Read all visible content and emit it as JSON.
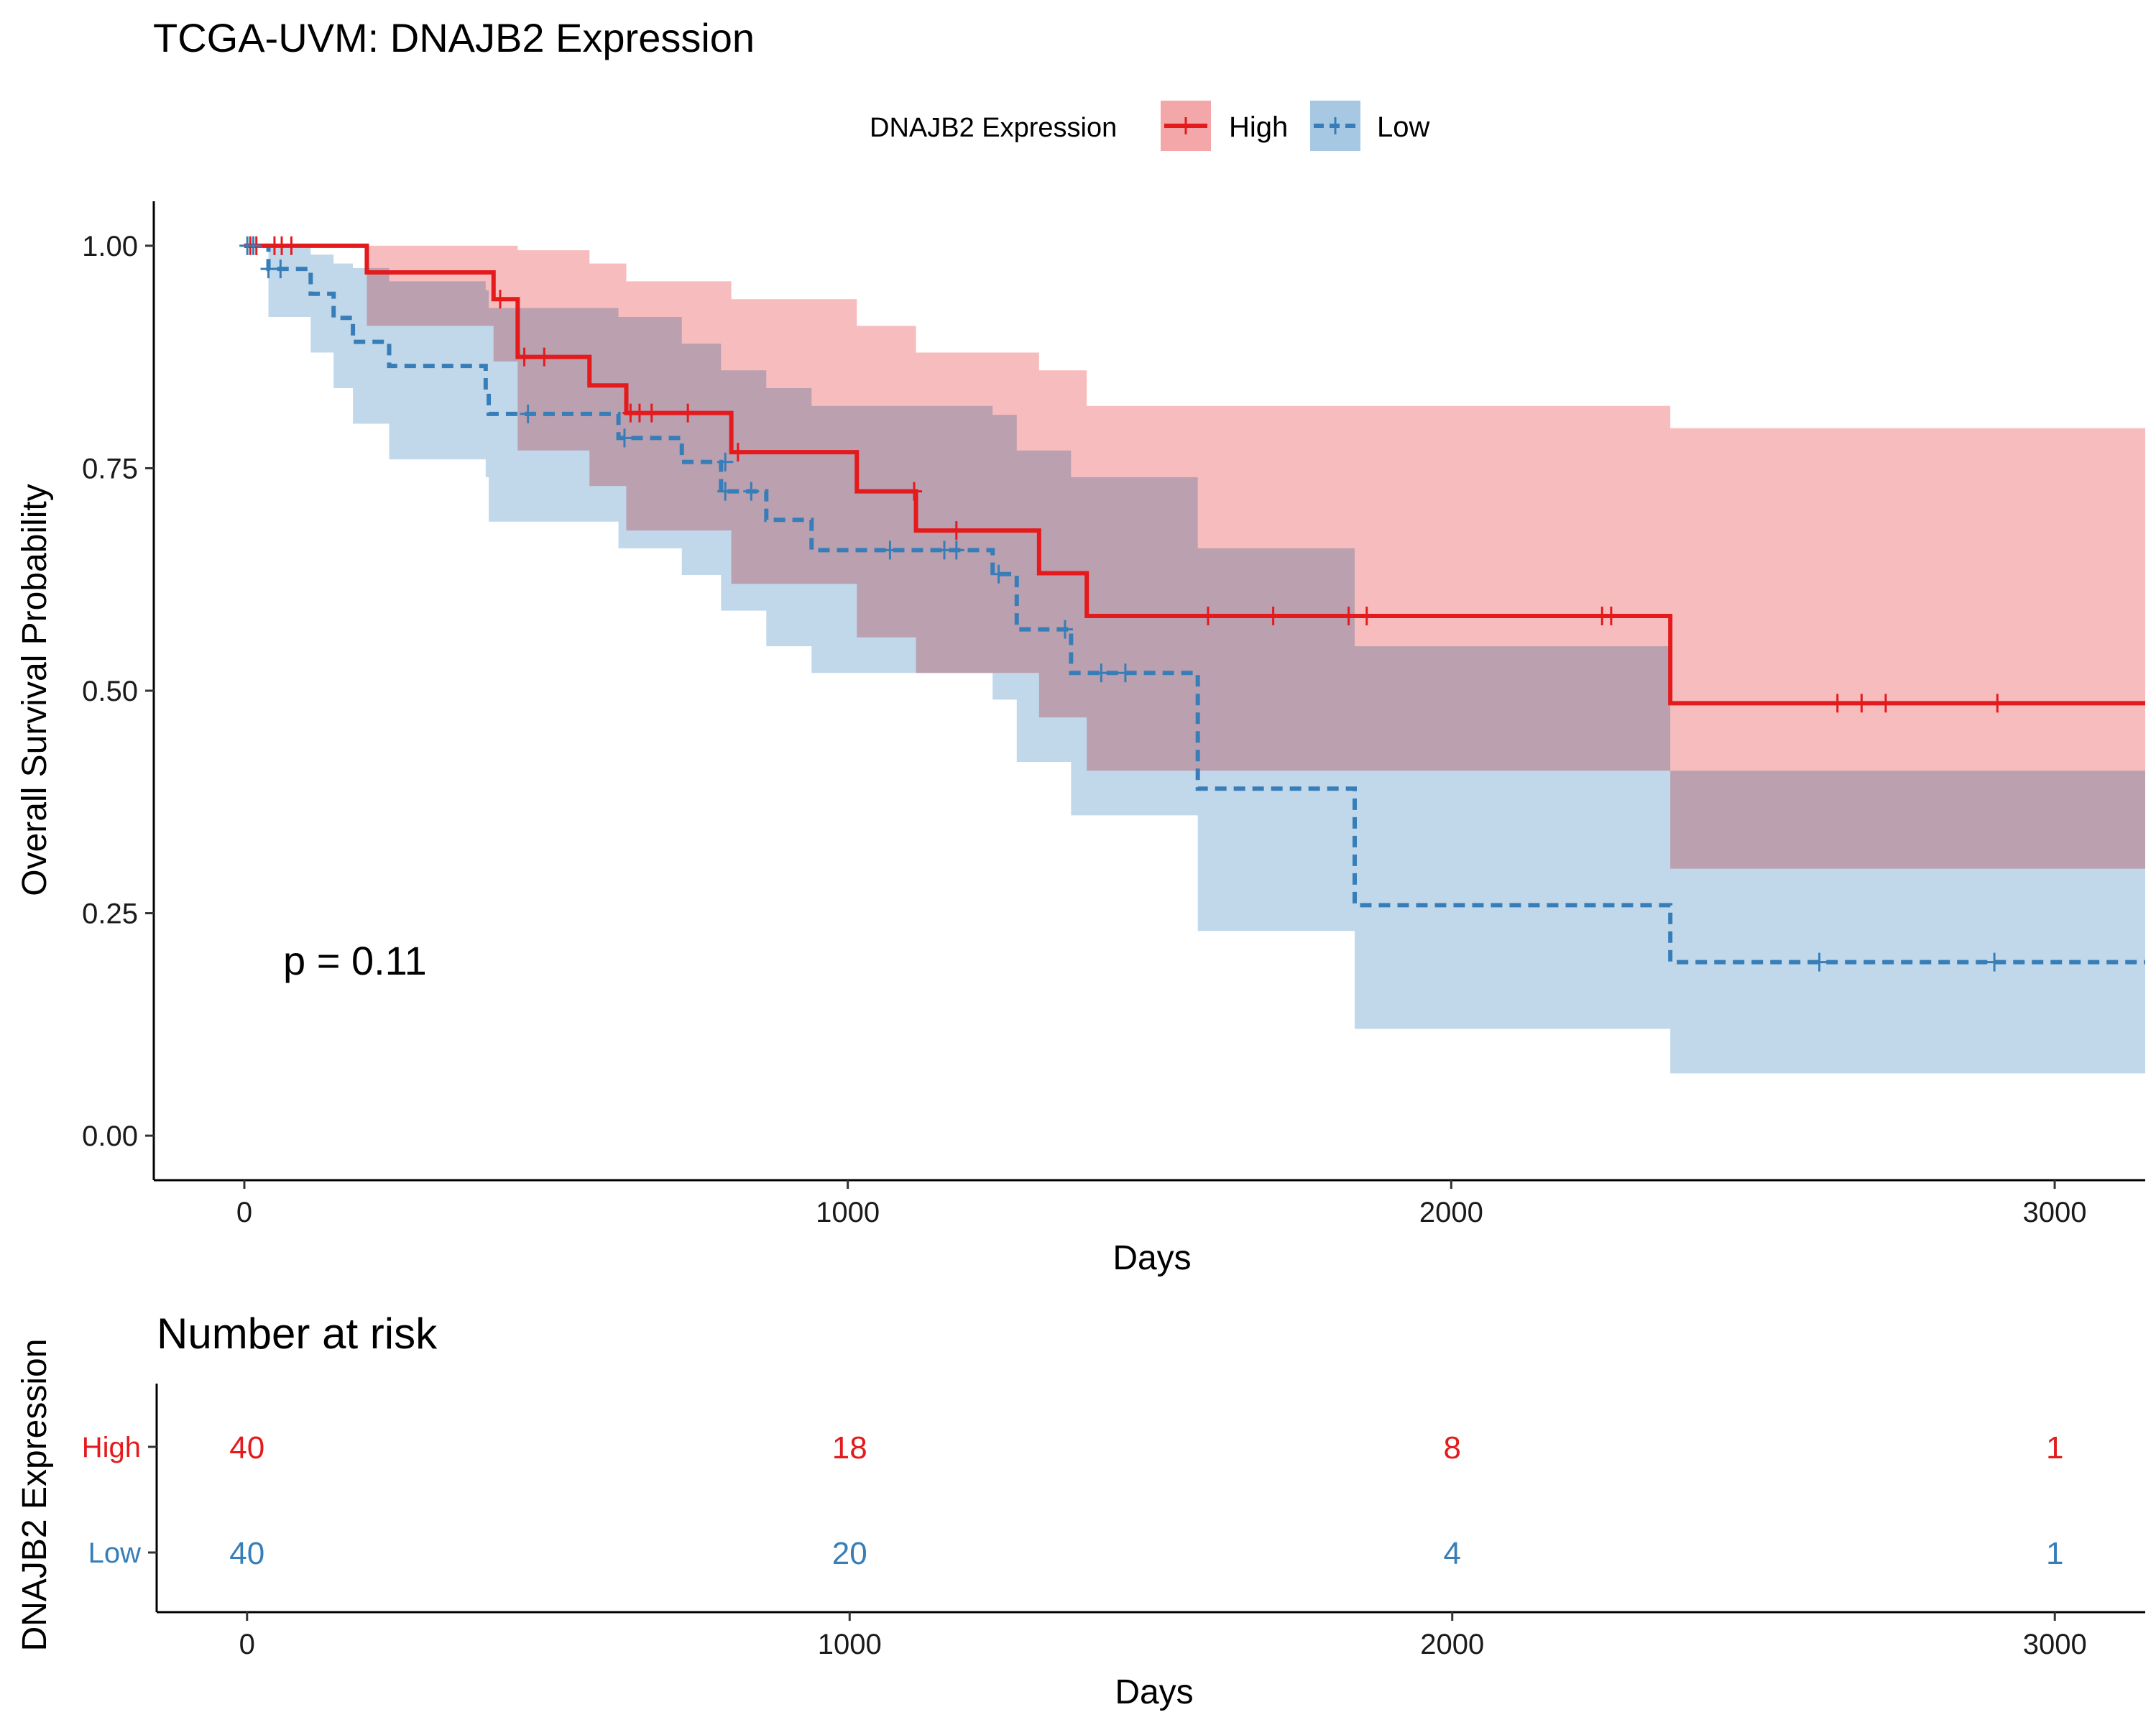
{
  "colors": {
    "high": "#E41A1C",
    "low": "#377EB8",
    "high_band": "#F4A7A8",
    "low_band": "#A6C8E3"
  },
  "chart_data": {
    "type": "line",
    "subtype": "kaplan-meier",
    "title": "TCGA-UVM: DNAJB2 Expression",
    "xlabel": "Days",
    "ylabel": "Overall Survival Probability",
    "xlim": [
      -150,
      3150
    ],
    "ylim": [
      -0.05,
      1.05
    ],
    "xticks": [
      0,
      1000,
      2000,
      3000
    ],
    "yticks": [
      0,
      0.25,
      0.5,
      0.75,
      1.0
    ],
    "ytick_labels": [
      "0.00",
      "0.25",
      "0.50",
      "0.75",
      "1.00"
    ],
    "legend": {
      "title": "DNAJB2 Expression",
      "placement": "top"
    },
    "pvalue": "p = 0.11",
    "series": [
      {
        "name": "High",
        "line": "solid",
        "steps": [
          [
            0,
            1.0
          ],
          [
            203,
            0.97
          ],
          [
            413,
            0.94
          ],
          [
            453,
            0.875
          ],
          [
            572,
            0.843
          ],
          [
            633,
            0.812
          ],
          [
            807,
            0.768
          ],
          [
            1015,
            0.724
          ],
          [
            1113,
            0.68
          ],
          [
            1317,
            0.632
          ],
          [
            1396,
            0.584
          ],
          [
            2363,
            0.486
          ],
          [
            3150,
            0.486
          ]
        ],
        "upper": [
          [
            0,
            1.0
          ],
          [
            203,
            1.0
          ],
          [
            453,
            0.995
          ],
          [
            572,
            0.98
          ],
          [
            633,
            0.96
          ],
          [
            807,
            0.94
          ],
          [
            1015,
            0.91
          ],
          [
            1113,
            0.88
          ],
          [
            1317,
            0.86
          ],
          [
            1396,
            0.82
          ],
          [
            2363,
            0.795
          ],
          [
            3150,
            0.795
          ]
        ],
        "lower": [
          [
            0,
            1.0
          ],
          [
            203,
            0.91
          ],
          [
            413,
            0.87
          ],
          [
            453,
            0.77
          ],
          [
            572,
            0.73
          ],
          [
            633,
            0.68
          ],
          [
            807,
            0.62
          ],
          [
            1015,
            0.56
          ],
          [
            1113,
            0.52
          ],
          [
            1317,
            0.47
          ],
          [
            1396,
            0.41
          ],
          [
            2363,
            0.3
          ],
          [
            3150,
            0.3
          ]
        ],
        "censors": [
          [
            10,
            1.0
          ],
          [
            20,
            1.0
          ],
          [
            50,
            1.0
          ],
          [
            62,
            1.0
          ],
          [
            78,
            1.0
          ],
          [
            424,
            0.94
          ],
          [
            464,
            0.875
          ],
          [
            497,
            0.875
          ],
          [
            640,
            0.812
          ],
          [
            655,
            0.812
          ],
          [
            675,
            0.812
          ],
          [
            735,
            0.812
          ],
          [
            818,
            0.768
          ],
          [
            1110,
            0.724
          ],
          [
            1180,
            0.68
          ],
          [
            1597,
            0.584
          ],
          [
            1705,
            0.584
          ],
          [
            1830,
            0.584
          ],
          [
            1860,
            0.584
          ],
          [
            2250,
            0.584
          ],
          [
            2265,
            0.584
          ],
          [
            2640,
            0.486
          ],
          [
            2680,
            0.486
          ],
          [
            2720,
            0.486
          ],
          [
            2905,
            0.486
          ]
        ]
      },
      {
        "name": "Low",
        "line": "dashed",
        "steps": [
          [
            0,
            1.0
          ],
          [
            40,
            0.974
          ],
          [
            110,
            0.946
          ],
          [
            148,
            0.919
          ],
          [
            180,
            0.892
          ],
          [
            240,
            0.865
          ],
          [
            400,
            0.838
          ],
          [
            405,
            0.811
          ],
          [
            620,
            0.784
          ],
          [
            725,
            0.757
          ],
          [
            790,
            0.724
          ],
          [
            865,
            0.692
          ],
          [
            940,
            0.658
          ],
          [
            1240,
            0.631
          ],
          [
            1280,
            0.569
          ],
          [
            1370,
            0.52
          ],
          [
            1580,
            0.39
          ],
          [
            1840,
            0.259
          ],
          [
            2363,
            0.195
          ],
          [
            3150,
            0.195
          ]
        ],
        "upper": [
          [
            0,
            1.0
          ],
          [
            60,
            1.0
          ],
          [
            110,
            0.99
          ],
          [
            148,
            0.98
          ],
          [
            180,
            0.975
          ],
          [
            240,
            0.96
          ],
          [
            400,
            0.95
          ],
          [
            405,
            0.93
          ],
          [
            620,
            0.92
          ],
          [
            725,
            0.89
          ],
          [
            790,
            0.86
          ],
          [
            865,
            0.84
          ],
          [
            940,
            0.82
          ],
          [
            1240,
            0.81
          ],
          [
            1280,
            0.77
          ],
          [
            1370,
            0.74
          ],
          [
            1580,
            0.66
          ],
          [
            1840,
            0.55
          ],
          [
            2363,
            0.41
          ],
          [
            3150,
            0.41
          ]
        ],
        "lower": [
          [
            0,
            1.0
          ],
          [
            40,
            0.92
          ],
          [
            110,
            0.88
          ],
          [
            148,
            0.84
          ],
          [
            180,
            0.8
          ],
          [
            240,
            0.76
          ],
          [
            400,
            0.74
          ],
          [
            405,
            0.69
          ],
          [
            620,
            0.66
          ],
          [
            725,
            0.63
          ],
          [
            790,
            0.59
          ],
          [
            865,
            0.55
          ],
          [
            940,
            0.52
          ],
          [
            1240,
            0.49
          ],
          [
            1280,
            0.42
          ],
          [
            1370,
            0.36
          ],
          [
            1580,
            0.23
          ],
          [
            1840,
            0.12
          ],
          [
            2363,
            0.07
          ],
          [
            3150,
            0.07
          ]
        ],
        "censors": [
          [
            5,
            1.0
          ],
          [
            15,
            1.0
          ],
          [
            40,
            0.974
          ],
          [
            60,
            0.974
          ],
          [
            470,
            0.811
          ],
          [
            630,
            0.784
          ],
          [
            797,
            0.757
          ],
          [
            797,
            0.724
          ],
          [
            840,
            0.724
          ],
          [
            1070,
            0.658
          ],
          [
            1160,
            0.658
          ],
          [
            1180,
            0.658
          ],
          [
            1250,
            0.631
          ],
          [
            1360,
            0.569
          ],
          [
            1420,
            0.52
          ],
          [
            1460,
            0.52
          ],
          [
            2610,
            0.195
          ],
          [
            2900,
            0.195
          ]
        ]
      }
    ],
    "risk_table": {
      "title": "Number at risk",
      "ylabel": "DNAJB2 Expression",
      "xlabel": "Days",
      "times": [
        0,
        1000,
        2000,
        3000
      ],
      "rows": [
        {
          "name": "High",
          "counts": [
            "40",
            "18",
            "8",
            "1"
          ]
        },
        {
          "name": "Low",
          "counts": [
            "40",
            "20",
            "4",
            "1"
          ]
        }
      ]
    }
  }
}
